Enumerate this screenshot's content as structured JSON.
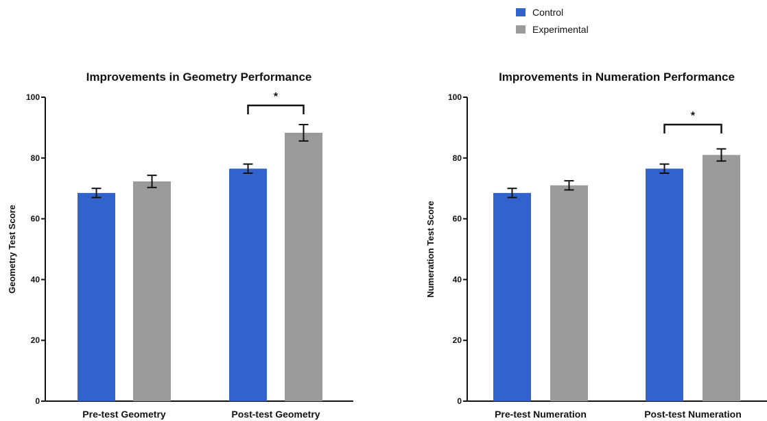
{
  "legend": [
    {
      "name": "Control",
      "color": "#3263cc"
    },
    {
      "name": "Experimental",
      "color": "#9a9a9a"
    }
  ],
  "chart_data": [
    {
      "type": "bar",
      "title": "Improvements in Geometry Performance",
      "xlabel": "",
      "ylabel": "Geometry Test Score",
      "ylim": [
        0,
        100
      ],
      "yticks": [
        0,
        20,
        40,
        60,
        80,
        100
      ],
      "categories": [
        "Pre-test Geometry",
        "Post-test Geometry"
      ],
      "series": [
        {
          "name": "Control",
          "values": [
            68.5,
            76.5
          ],
          "errors": [
            1.5,
            1.5
          ]
        },
        {
          "name": "Experimental",
          "values": [
            72.3,
            88.3
          ],
          "errors": [
            2.0,
            2.7
          ]
        }
      ],
      "significance": [
        {
          "category": "Post-test Geometry",
          "label": "*"
        }
      ],
      "grid": false,
      "legend_position": "top-right"
    },
    {
      "type": "bar",
      "title": "Improvements in Numeration Performance",
      "xlabel": "",
      "ylabel": "Numeration Test Score",
      "ylim": [
        0,
        100
      ],
      "yticks": [
        0,
        20,
        40,
        60,
        80,
        100
      ],
      "categories": [
        "Pre-test Numeration",
        "Post-test Numeration"
      ],
      "series": [
        {
          "name": "Control",
          "values": [
            68.5,
            76.5
          ],
          "errors": [
            1.5,
            1.5
          ]
        },
        {
          "name": "Experimental",
          "values": [
            71.0,
            81.0
          ],
          "errors": [
            1.5,
            2.0
          ]
        }
      ],
      "significance": [
        {
          "category": "Post-test Numeration",
          "label": "*"
        }
      ],
      "grid": false,
      "legend_position": "top-right"
    }
  ]
}
